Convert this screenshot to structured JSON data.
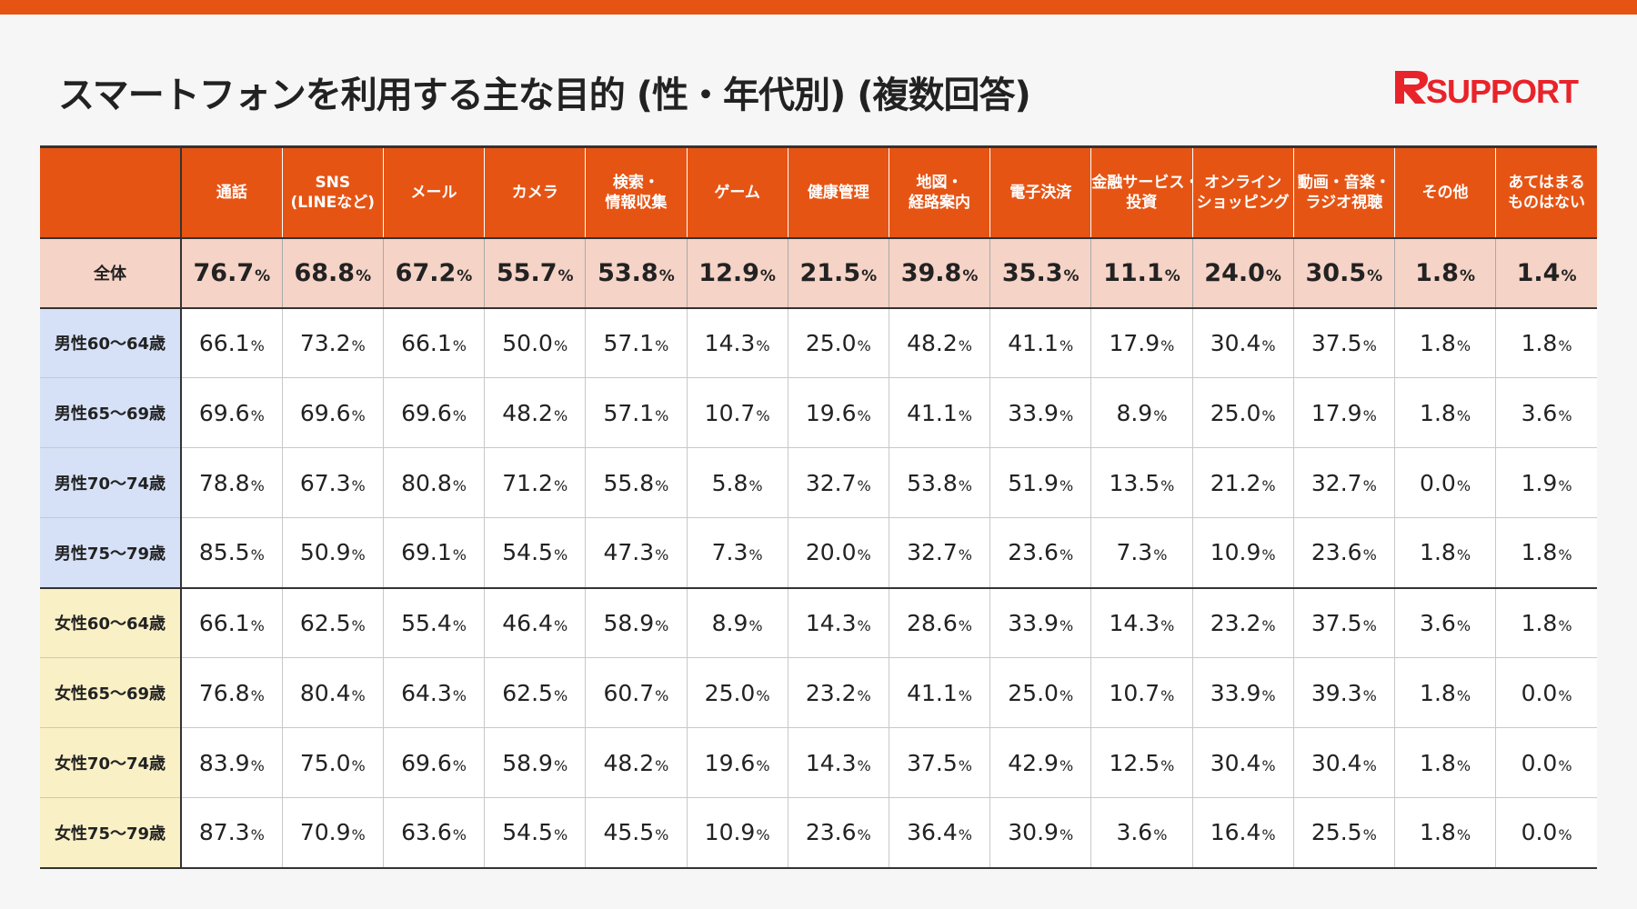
{
  "header": {
    "title": "スマートフォンを利用する主な目的 (性・年代別) (複数回答)",
    "logo_text": "SUPPORT",
    "brand_color": "#e65414"
  },
  "chart_data": {
    "type": "table",
    "title": "スマートフォンを利用する主な目的 (性・年代別) (複数回答)",
    "unit": "%",
    "columns": [
      [
        "通話"
      ],
      [
        "SNS",
        "(LINEなど)"
      ],
      [
        "メール"
      ],
      [
        "カメラ"
      ],
      [
        "検索・",
        "情報収集"
      ],
      [
        "ゲーム"
      ],
      [
        "健康管理"
      ],
      [
        "地図・",
        "経路案内"
      ],
      [
        "電子決済"
      ],
      [
        "金融サービス・",
        "投資"
      ],
      [
        "オンライン",
        "ショッピング"
      ],
      [
        "動画・音楽・",
        "ラジオ視聴"
      ],
      [
        "その他"
      ],
      [
        "あてはまる",
        "ものはない"
      ]
    ],
    "rows": [
      {
        "label": "全体",
        "group": "overall",
        "values": [
          "76.7",
          "68.8",
          "67.2",
          "55.7",
          "53.8",
          "12.9",
          "21.5",
          "39.8",
          "35.3",
          "11.1",
          "24.0",
          "30.5",
          "1.8",
          "1.4"
        ]
      },
      {
        "label": "男性60～64歳",
        "group": "male",
        "values": [
          "66.1",
          "73.2",
          "66.1",
          "50.0",
          "57.1",
          "14.3",
          "25.0",
          "48.2",
          "41.1",
          "17.9",
          "30.4",
          "37.5",
          "1.8",
          "1.8"
        ]
      },
      {
        "label": "男性65～69歳",
        "group": "male",
        "values": [
          "69.6",
          "69.6",
          "69.6",
          "48.2",
          "57.1",
          "10.7",
          "19.6",
          "41.1",
          "33.9",
          "8.9",
          "25.0",
          "17.9",
          "1.8",
          "3.6"
        ]
      },
      {
        "label": "男性70～74歳",
        "group": "male",
        "values": [
          "78.8",
          "67.3",
          "80.8",
          "71.2",
          "55.8",
          "5.8",
          "32.7",
          "53.8",
          "51.9",
          "13.5",
          "21.2",
          "32.7",
          "0.0",
          "1.9"
        ]
      },
      {
        "label": "男性75～79歳",
        "group": "male",
        "values": [
          "85.5",
          "50.9",
          "69.1",
          "54.5",
          "47.3",
          "7.3",
          "20.0",
          "32.7",
          "23.6",
          "7.3",
          "10.9",
          "23.6",
          "1.8",
          "1.8"
        ]
      },
      {
        "label": "女性60～64歳",
        "group": "female",
        "values": [
          "66.1",
          "62.5",
          "55.4",
          "46.4",
          "58.9",
          "8.9",
          "14.3",
          "28.6",
          "33.9",
          "14.3",
          "23.2",
          "37.5",
          "3.6",
          "1.8"
        ]
      },
      {
        "label": "女性65～69歳",
        "group": "female",
        "values": [
          "76.8",
          "80.4",
          "64.3",
          "62.5",
          "60.7",
          "25.0",
          "23.2",
          "41.1",
          "25.0",
          "10.7",
          "33.9",
          "39.3",
          "1.8",
          "0.0"
        ]
      },
      {
        "label": "女性70～74歳",
        "group": "female",
        "values": [
          "83.9",
          "75.0",
          "69.6",
          "58.9",
          "48.2",
          "19.6",
          "14.3",
          "37.5",
          "42.9",
          "12.5",
          "30.4",
          "30.4",
          "1.8",
          "0.0"
        ]
      },
      {
        "label": "女性75～79歳",
        "group": "female",
        "values": [
          "87.3",
          "70.9",
          "63.6",
          "54.5",
          "45.5",
          "10.9",
          "23.6",
          "36.4",
          "30.9",
          "3.6",
          "16.4",
          "25.5",
          "1.8",
          "0.0"
        ]
      }
    ],
    "colors": {
      "header_bg": "#e65414",
      "overall_bg": "#f5d3c6",
      "male_label_bg": "#d6e1f7",
      "female_label_bg": "#faf0c6"
    }
  }
}
